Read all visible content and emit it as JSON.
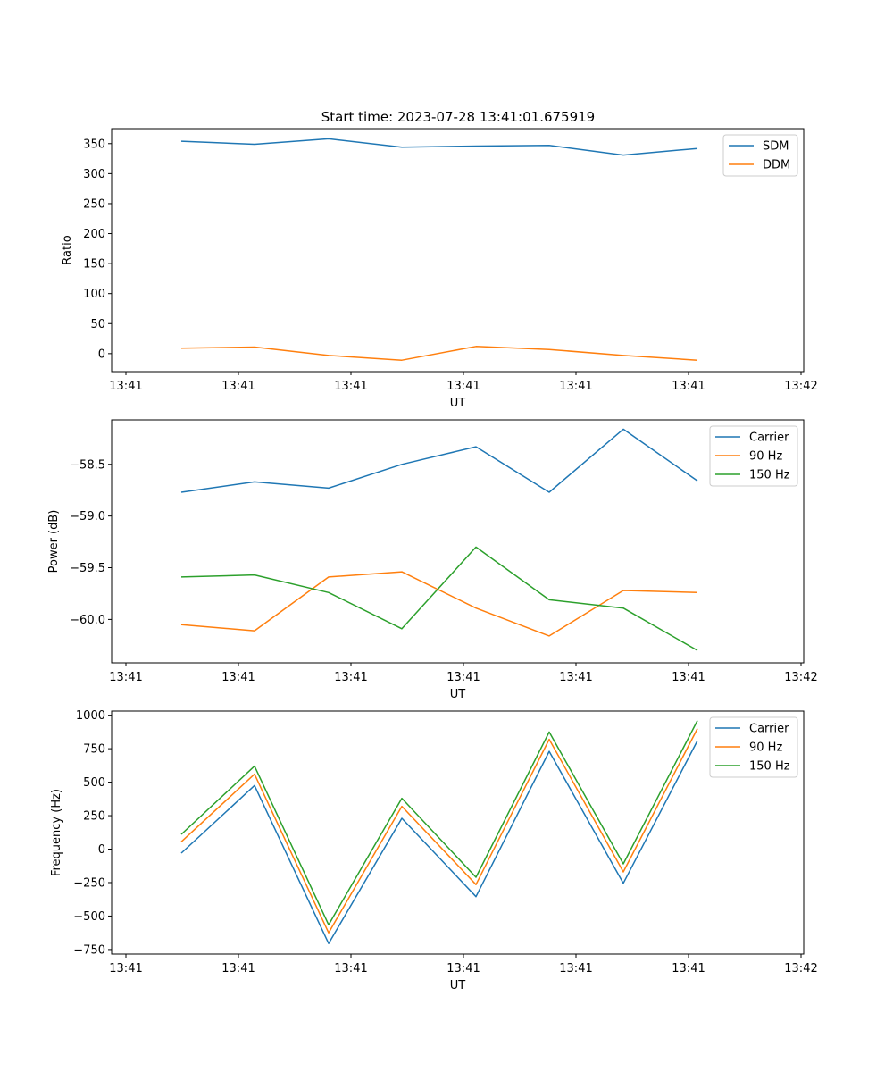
{
  "title": "Start time: 2023-07-28 13:41:01.675919",
  "colors": {
    "blue": "#1f77b4",
    "orange": "#ff7f0e",
    "green": "#2ca02c"
  },
  "chart_data": [
    {
      "type": "line",
      "title": "Start time: 2023-07-28 13:41:01.675919",
      "xlabel": "UT",
      "ylabel": "Ratio",
      "x_ticks": [
        "13:41",
        "13:41",
        "13:41",
        "13:41",
        "13:41",
        "13:41",
        "13:42"
      ],
      "ylim": [
        -30,
        375
      ],
      "y_ticks": [
        0,
        50,
        100,
        150,
        200,
        250,
        300,
        350
      ],
      "y_tick_labels": [
        "0",
        "50",
        "100",
        "150",
        "200",
        "250",
        "300",
        "350"
      ],
      "legend_position": "top-right",
      "series": [
        {
          "name": "SDM",
          "color": "#1f77b4",
          "values": [
            354,
            349,
            358,
            344,
            346,
            347,
            331,
            342
          ]
        },
        {
          "name": "DDM",
          "color": "#ff7f0e",
          "values": [
            9,
            11,
            -3,
            -11,
            12,
            7,
            -3,
            -11
          ]
        }
      ]
    },
    {
      "type": "line",
      "xlabel": "UT",
      "ylabel": "Power (dB)",
      "x_ticks": [
        "13:41",
        "13:41",
        "13:41",
        "13:41",
        "13:41",
        "13:41",
        "13:42"
      ],
      "ylim": [
        -60.42,
        -58.07
      ],
      "y_ticks": [
        -58.5,
        -59.0,
        -59.5,
        -60.0
      ],
      "y_tick_labels": [
        "−58.5",
        "−59.0",
        "−59.5",
        "−60.0"
      ],
      "legend_position": "top-right",
      "series": [
        {
          "name": "Carrier",
          "color": "#1f77b4",
          "values": [
            -58.77,
            -58.67,
            -58.73,
            -58.5,
            -58.33,
            -58.77,
            -58.16,
            -58.66
          ]
        },
        {
          "name": "90 Hz",
          "color": "#ff7f0e",
          "values": [
            -60.05,
            -60.11,
            -59.59,
            -59.54,
            -59.89,
            -60.16,
            -59.72,
            -59.74
          ]
        },
        {
          "name": "150 Hz",
          "color": "#2ca02c",
          "values": [
            -59.59,
            -59.57,
            -59.74,
            -60.09,
            -59.3,
            -59.81,
            -59.89,
            -60.3
          ]
        }
      ]
    },
    {
      "type": "line",
      "xlabel": "UT",
      "ylabel": "Frequency (Hz)",
      "x_ticks": [
        "13:41",
        "13:41",
        "13:41",
        "13:41",
        "13:41",
        "13:41",
        "13:42"
      ],
      "ylim": [
        -784,
        1031
      ],
      "y_ticks": [
        1000,
        750,
        500,
        250,
        0,
        -250,
        -500,
        -750
      ],
      "y_tick_labels": [
        "1000",
        "750",
        "500",
        "250",
        "0",
        "−250",
        "−500",
        "−750"
      ],
      "legend_position": "top-right",
      "series": [
        {
          "name": "Carrier",
          "color": "#1f77b4",
          "values": [
            -30,
            475,
            -705,
            230,
            -355,
            730,
            -255,
            810
          ]
        },
        {
          "name": "90 Hz",
          "color": "#ff7f0e",
          "values": [
            55,
            560,
            -625,
            320,
            -265,
            820,
            -170,
            900
          ]
        },
        {
          "name": "150 Hz",
          "color": "#2ca02c",
          "values": [
            110,
            620,
            -565,
            380,
            -210,
            875,
            -110,
            960
          ]
        }
      ]
    }
  ]
}
